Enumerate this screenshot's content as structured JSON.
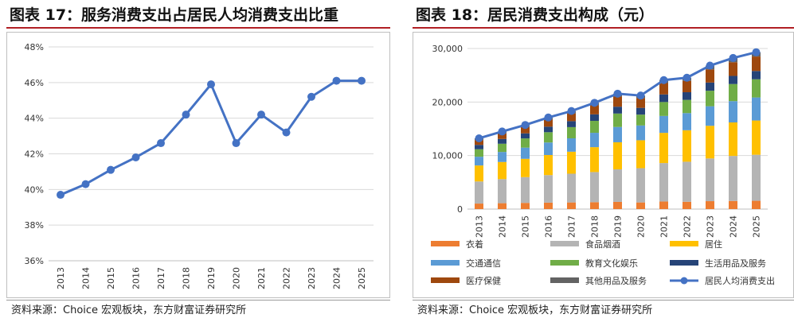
{
  "left": {
    "title": "图表 17：服务消费支出占居民人均消费支出比重",
    "source": "资料来源：Choice 宏观板块，东方财富证券研究所",
    "chart_data": {
      "type": "line",
      "title": "",
      "xlabel": "",
      "ylabel": "",
      "x": [
        "2013",
        "2014",
        "2015",
        "2016",
        "2017",
        "2018",
        "2019",
        "2020",
        "2021",
        "2022",
        "2023",
        "2024",
        "2025"
      ],
      "series": [
        {
          "name": "",
          "values": [
            39.7,
            40.3,
            41.1,
            41.8,
            42.6,
            44.2,
            45.9,
            42.6,
            44.2,
            43.2,
            45.2,
            46.1,
            46.1
          ]
        }
      ],
      "ylim": [
        36,
        48
      ],
      "yticks": [
        "36%",
        "38%",
        "40%",
        "42%",
        "44%",
        "46%",
        "48%"
      ],
      "y_unit": "%",
      "line_color": "#4472c4",
      "grid": true,
      "legend": "none"
    }
  },
  "right": {
    "title": "图表 18：居民消费支出构成（元）",
    "source": "资料来源：Choice 宏观板块，东方财富证券研究所",
    "chart_data": {
      "type": "bar",
      "stacked": true,
      "title": "",
      "xlabel": "",
      "ylabel": "",
      "categories": [
        "2013",
        "2014",
        "2015",
        "2016",
        "2017",
        "2018",
        "2019",
        "2020",
        "2021",
        "2022",
        "2023",
        "2024",
        "2025"
      ],
      "ylim": [
        0,
        30000
      ],
      "yticks": [
        "0",
        "10,000",
        "20,000",
        "30,000"
      ],
      "series": [
        {
          "name": "衣着",
          "color": "#ed7d31",
          "values": [
            1030,
            1100,
            1160,
            1200,
            1240,
            1290,
            1340,
            1240,
            1420,
            1370,
            1480,
            1520,
            1550
          ]
        },
        {
          "name": "食品烟酒",
          "color": "#b4b4b4",
          "values": [
            4130,
            4500,
            4810,
            5150,
            5370,
            5630,
            6080,
            6400,
            7180,
            7480,
            7980,
            8410,
            8600
          ]
        },
        {
          "name": "居住",
          "color": "#ffc000",
          "values": [
            2990,
            3200,
            3420,
            3750,
            4110,
            4650,
            5060,
            5220,
            5640,
            5880,
            6100,
            6260,
            6400
          ]
        },
        {
          "name": "交通通信",
          "color": "#5b9bd5",
          "values": [
            1630,
            1870,
            2090,
            2340,
            2500,
            2680,
            2860,
            2760,
            3160,
            3200,
            3650,
            3980,
            4300
          ]
        },
        {
          "name": "教育文化娱乐",
          "color": "#70ad47",
          "values": [
            1400,
            1540,
            1720,
            1920,
            2090,
            2230,
            2510,
            2030,
            2600,
            2470,
            2900,
            3190,
            3400
          ]
        },
        {
          "name": "生活用品及服务",
          "color": "#264478",
          "values": [
            810,
            890,
            950,
            1040,
            1120,
            1220,
            1280,
            1260,
            1420,
            1430,
            1530,
            1520,
            1550
          ]
        },
        {
          "name": "医疗保健",
          "color": "#9e480e",
          "values": [
            910,
            1040,
            1160,
            1310,
            1450,
            1690,
            1900,
            1840,
            2120,
            2120,
            2460,
            2550,
            2700
          ]
        },
        {
          "name": "其他用品及服务",
          "color": "#636363",
          "values": [
            320,
            360,
            390,
            400,
            450,
            480,
            520,
            460,
            570,
            600,
            700,
            790,
            800
          ]
        }
      ],
      "line": {
        "name": "居民人均消费支出",
        "color": "#4472c4",
        "values": [
          13220,
          14490,
          15710,
          17110,
          18320,
          19850,
          21560,
          21210,
          24100,
          24540,
          26800,
          28230,
          29300
        ]
      },
      "grid": true,
      "legend": "bottom"
    }
  }
}
